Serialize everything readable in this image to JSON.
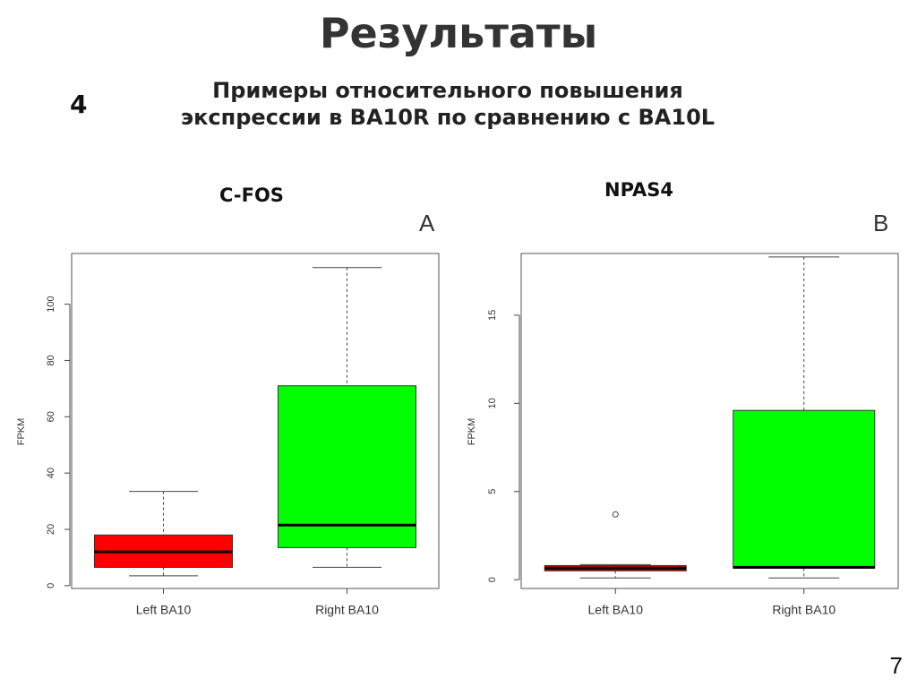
{
  "slide": {
    "title": "Результаты",
    "section_number": "4",
    "subtitle_line1": "Примеры относительного повышения",
    "subtitle_line2": "экспрессии в BA10R по сравнению с BA10L",
    "page_number": "7"
  },
  "chart_data": [
    {
      "type": "boxplot",
      "gene": "C-FOS",
      "panel": "A",
      "ylabel": "FPKM",
      "ylim": [
        -1,
        118
      ],
      "yticks": [
        0,
        20,
        40,
        60,
        80,
        100
      ],
      "categories": [
        "Left BA10",
        "Right BA10"
      ],
      "boxes": [
        {
          "name": "Left BA10",
          "color": "#ff0000",
          "whisker_low": 3.5,
          "q1": 6.5,
          "median": 12,
          "q3": 18,
          "whisker_high": 33.5,
          "outliers": []
        },
        {
          "name": "Right BA10",
          "color": "#00ff00",
          "whisker_low": 6.5,
          "q1": 13.5,
          "median": 21.5,
          "q3": 71,
          "whisker_high": 113,
          "outliers": []
        }
      ]
    },
    {
      "type": "boxplot",
      "gene": "NPAS4",
      "panel": "B",
      "ylabel": "FPKM",
      "ylim": [
        -0.5,
        18.5
      ],
      "yticks": [
        0,
        5,
        10,
        15
      ],
      "categories": [
        "Left BA10",
        "Right BA10"
      ],
      "boxes": [
        {
          "name": "Left BA10",
          "color": "#c00000",
          "whisker_low": 0.1,
          "q1": 0.5,
          "median": 0.65,
          "q3": 0.8,
          "whisker_high": 0.85,
          "outliers": [
            3.7
          ]
        },
        {
          "name": "Right BA10",
          "color": "#00ff00",
          "whisker_low": 0.1,
          "q1": 0.65,
          "median": 0.7,
          "q3": 9.6,
          "whisker_high": 18.3,
          "outliers": []
        }
      ]
    }
  ]
}
